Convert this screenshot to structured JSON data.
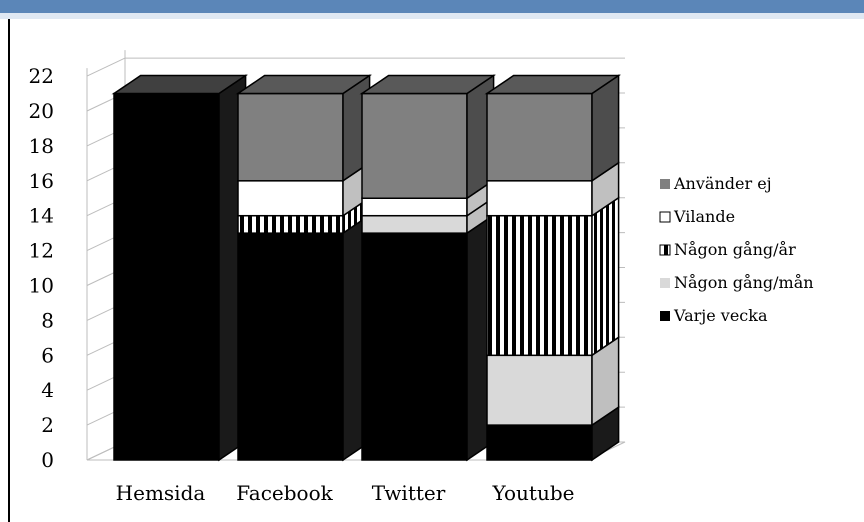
{
  "colors": {
    "top_bar": "#5b86b8",
    "varje_vecka": "#000000",
    "nagon_gang_man": "#d9d9d9",
    "nagon_gang_ar": "stripes-black-white",
    "vilande": "#ffffff",
    "anvander_ej": "#808080"
  },
  "chart_data": {
    "type": "bar",
    "stacked": true,
    "three_d": true,
    "categories": [
      "Hemsida",
      "Facebook",
      "Twitter",
      "Youtube"
    ],
    "series": [
      {
        "name": "Varje vecka",
        "values": [
          21,
          13,
          13,
          2
        ]
      },
      {
        "name": "Någon gång/mån",
        "values": [
          0,
          0,
          1,
          4
        ]
      },
      {
        "name": "Någon gång/år",
        "values": [
          0,
          1,
          0,
          8
        ]
      },
      {
        "name": "Vilande",
        "values": [
          0,
          2,
          1,
          2
        ]
      },
      {
        "name": "Använder ej",
        "values": [
          0,
          5,
          6,
          5
        ]
      }
    ],
    "y_ticks": [
      "0",
      "2",
      "4",
      "6",
      "8",
      "10",
      "12",
      "14",
      "16",
      "18",
      "20",
      "22"
    ],
    "ylim": [
      0,
      22
    ],
    "grid": true,
    "legend": [
      "Använder ej",
      "Vilande",
      "Någon gång/år",
      "Någon gång/mån",
      "Varje vecka"
    ],
    "legend_position": "right"
  }
}
